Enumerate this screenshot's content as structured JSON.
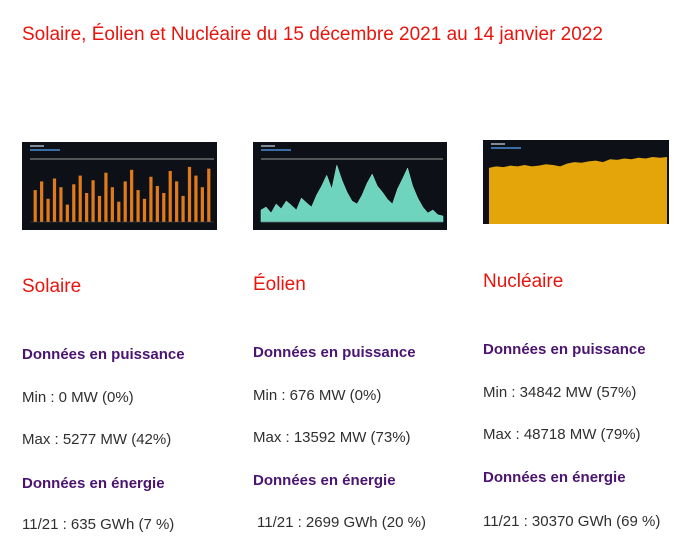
{
  "page": {
    "title": "Solaire, Éolien et Nucléaire du 15 décembre 2021 au 14 janvier 2022"
  },
  "colors": {
    "title": "#e8140e",
    "heading": "#4a1470",
    "solaire": "#e07a1a",
    "eolien": "#6fd4bd",
    "nucleaire": "#e3a50a",
    "thumb_bg": "#0d1117"
  },
  "columns": [
    {
      "name": "Solaire",
      "puissance_heading": "Données en puissance",
      "min": "Min : 0 MW (0%)",
      "max": "Max : 5277 MW (42%)",
      "energie_heading": "Données en énergie",
      "energie": "11/21 : 635 GWh (7 %)"
    },
    {
      "name": "Éolien",
      "puissance_heading": "Données en puissance",
      "min": "Min : 676 MW (0%)",
      "max": "Max : 13592 MW (73%)",
      "energie_heading": "Données en énergie",
      "energie": "11/21 : 2699 GWh (20 %)"
    },
    {
      "name": "Nucléaire",
      "puissance_heading": "Données en puissance",
      "min": "Min : 34842 MW (57%)",
      "max": "Max : 48718 MW (79%)",
      "energie_heading": "Données en énergie",
      "energie": "11/21 : 30370 GWh (69 %)"
    }
  ]
}
